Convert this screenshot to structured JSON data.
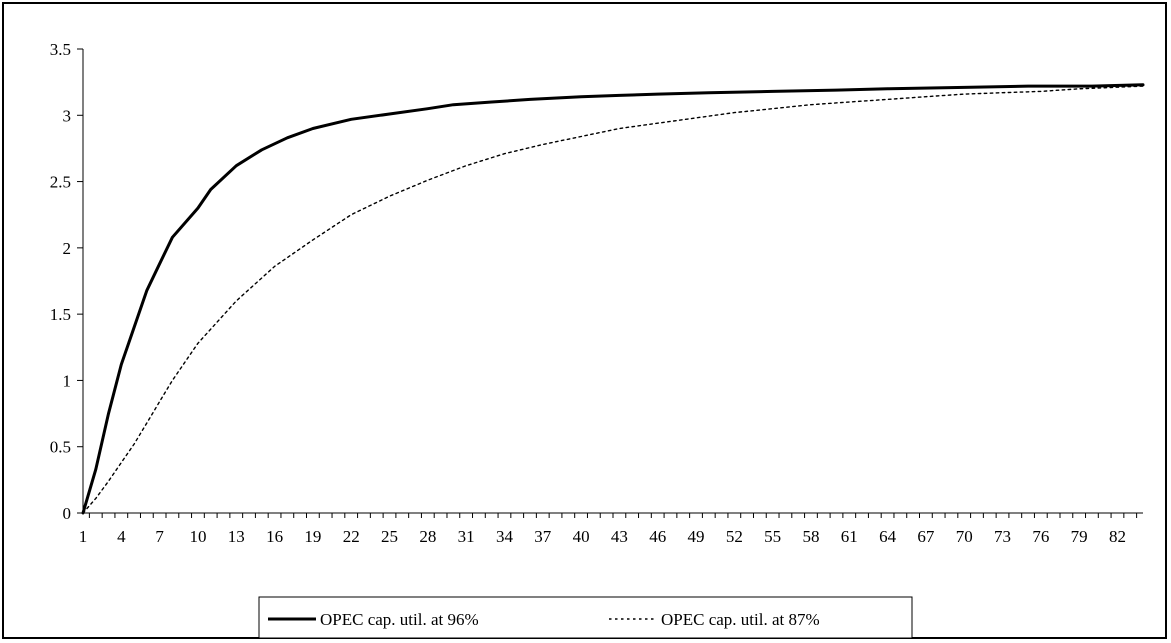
{
  "chart_data": {
    "type": "line",
    "title": "",
    "xlabel": "",
    "ylabel": "",
    "x_range": [
      1,
      84
    ],
    "xticks": [
      1,
      4,
      7,
      10,
      13,
      16,
      19,
      22,
      25,
      28,
      31,
      34,
      37,
      40,
      43,
      46,
      49,
      52,
      55,
      58,
      61,
      64,
      67,
      70,
      73,
      76,
      79,
      82
    ],
    "ylim": [
      0,
      3.5
    ],
    "yticks": [
      0,
      0.5,
      1,
      1.5,
      2,
      2.5,
      3,
      3.5
    ],
    "ytick_labels": [
      "0",
      "0.5",
      "1",
      "1.5",
      "2",
      "2.5",
      "3",
      "3.5"
    ],
    "grid": false,
    "legend_position": "bottom",
    "series": [
      {
        "name": "OPEC cap. util. at 96%",
        "color": "#000000",
        "style": "solid",
        "x": [
          1,
          2,
          3,
          4,
          5,
          6,
          7,
          8,
          10,
          11,
          13,
          15,
          17,
          19,
          22,
          25,
          28,
          30,
          33,
          36,
          40,
          43,
          46,
          50,
          55,
          60,
          64,
          70,
          75,
          80,
          84
        ],
        "values": [
          0,
          0.33,
          0.75,
          1.12,
          1.4,
          1.68,
          1.88,
          2.08,
          2.3,
          2.44,
          2.62,
          2.74,
          2.83,
          2.9,
          2.97,
          3.01,
          3.05,
          3.08,
          3.1,
          3.12,
          3.14,
          3.15,
          3.16,
          3.17,
          3.18,
          3.19,
          3.2,
          3.21,
          3.22,
          3.22,
          3.23
        ]
      },
      {
        "name": "OPEC cap. util. at 87%",
        "color": "#000000",
        "style": "dotted",
        "x": [
          1,
          2,
          3,
          4,
          5,
          6,
          7,
          8,
          10,
          13,
          16,
          19,
          22,
          25,
          28,
          31,
          34,
          37,
          40,
          43,
          46,
          49,
          52,
          55,
          58,
          61,
          64,
          67,
          70,
          73,
          76,
          79,
          84
        ],
        "values": [
          0,
          0.11,
          0.24,
          0.38,
          0.52,
          0.68,
          0.84,
          1.0,
          1.28,
          1.6,
          1.86,
          2.06,
          2.25,
          2.39,
          2.51,
          2.62,
          2.71,
          2.78,
          2.84,
          2.9,
          2.94,
          2.98,
          3.02,
          3.05,
          3.08,
          3.1,
          3.12,
          3.14,
          3.16,
          3.17,
          3.18,
          3.2,
          3.22
        ]
      }
    ]
  }
}
